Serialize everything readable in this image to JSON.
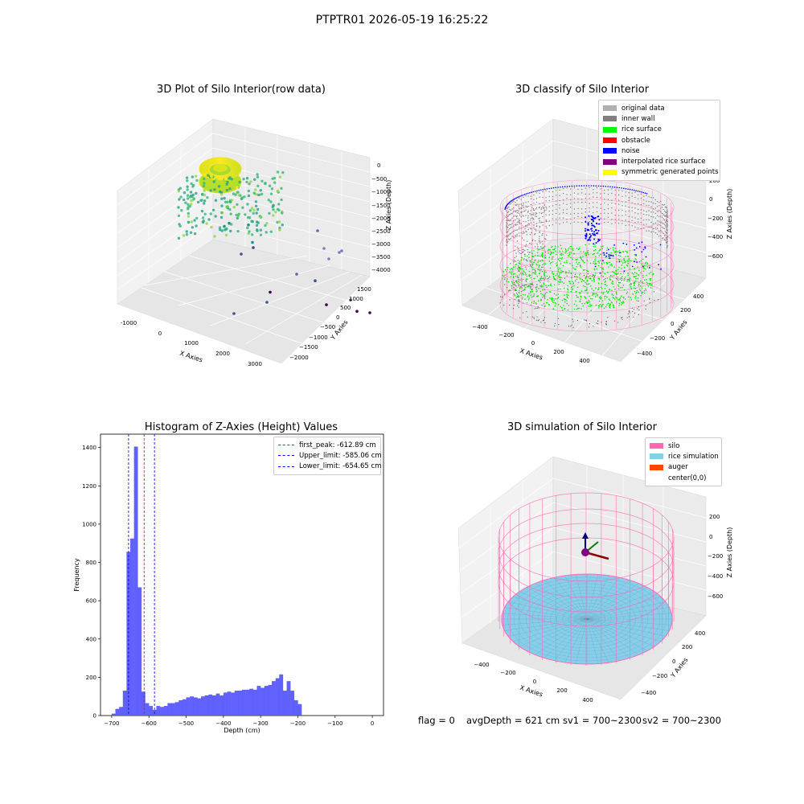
{
  "suptitle": "PTPTR01 2026-05-19 16:25:22",
  "footer": {
    "flag": "flag = 0",
    "avg_depth": "avgDepth = 621 cm",
    "sv1": "sv1 = 700~2300",
    "sv2": "sv2 = 700~2300"
  },
  "colors": {
    "silo": "#ff69b4",
    "rice_sim": "#87ceeb",
    "auger": "#ff4500",
    "hist_bar": "#5050ff",
    "peak_line": "#ff0000",
    "limit_line": "#0000ff",
    "inner_wall": "#808080",
    "rice_surface": "#00ff00",
    "noise": "#0000ff"
  },
  "chart_data": [
    {
      "type": "scatter",
      "title": "3D Plot of Silo Interior(row data)",
      "xlabel": "X Axies",
      "ylabel": "Y Axies",
      "zlabel": "Z Axies (Depth)",
      "x_ticks": [
        "-1000",
        "0",
        "1000",
        "2000",
        "3000"
      ],
      "y_ticks": [
        "1500",
        "1000",
        "500",
        "0",
        "−500",
        "−1000",
        "−1500",
        "−2000"
      ],
      "z_ticks": [
        "0",
        "−500",
        "−1000",
        "−1500",
        "−2000",
        "−2500",
        "−3000",
        "−3500",
        "−4000"
      ],
      "colormap": "viridis",
      "points": [
        {
          "x": -300,
          "y": 500,
          "z": -300
        },
        {
          "x": -200,
          "y": 400,
          "z": -250
        },
        {
          "x": -100,
          "y": 300,
          "z": -200
        },
        {
          "x": 0,
          "y": 200,
          "z": -150
        },
        {
          "x": 100,
          "y": 0,
          "z": -300
        },
        {
          "x": -500,
          "y": -100,
          "z": -1500
        },
        {
          "x": -400,
          "y": -200,
          "z": -1800
        },
        {
          "x": -300,
          "y": 0,
          "z": -2000
        },
        {
          "x": 300,
          "y": 400,
          "z": -1200
        },
        {
          "x": 500,
          "y": 300,
          "z": -1400
        },
        {
          "x": 700,
          "y": 200,
          "z": -1600
        },
        {
          "x": 200,
          "y": -300,
          "z": -2200
        },
        {
          "x": 1000,
          "y": -1500,
          "z": -3500
        },
        {
          "x": 1700,
          "y": -1700,
          "z": -3300
        },
        {
          "x": 2900,
          "y": 300,
          "z": -2800
        },
        {
          "x": 3000,
          "y": -500,
          "z": -3000
        },
        {
          "x": 3100,
          "y": -900,
          "z": -3200
        },
        {
          "x": 1500,
          "y": 300,
          "z": -3900
        }
      ]
    },
    {
      "type": "scatter",
      "title": "3D classify of Silo Interior",
      "xlabel": "X Axies",
      "ylabel": "Y Axies",
      "zlabel": "Z Axies (Depth)",
      "x_ticks": [
        "−400",
        "−200",
        "0",
        "200",
        "400"
      ],
      "y_ticks": [
        "400",
        "200",
        "0",
        "−200",
        "−400"
      ],
      "z_ticks": [
        "200",
        "0",
        "−200",
        "−400",
        "−600"
      ],
      "legend": [
        {
          "label": "original data",
          "color": "#b0b0b0"
        },
        {
          "label": "inner wall",
          "color": "#808080"
        },
        {
          "label": "rice surface",
          "color": "#00ff00"
        },
        {
          "label": "obstacle",
          "color": "#ff0000"
        },
        {
          "label": "noise",
          "color": "#0000ff"
        },
        {
          "label": "interpolated rice surface",
          "color": "#800080"
        },
        {
          "label": "symmetric generated points",
          "color": "#ffff00"
        }
      ]
    },
    {
      "type": "bar",
      "title": "Histogram of Z-Axies (Height) Values",
      "xlabel": "Depth (cm)",
      "ylabel": "Frequency",
      "xlim": [
        -730,
        30
      ],
      "ylim": [
        0,
        1470
      ],
      "x_ticks": [
        -700,
        -600,
        -500,
        -400,
        -300,
        -200,
        -100,
        0
      ],
      "y_ticks": [
        0,
        200,
        400,
        600,
        800,
        1000,
        1200,
        1400
      ],
      "bin_width": 10,
      "bin_start": -700,
      "values": [
        10,
        35,
        45,
        130,
        855,
        925,
        1405,
        670,
        125,
        65,
        50,
        30,
        50,
        45,
        50,
        65,
        65,
        70,
        80,
        85,
        95,
        100,
        95,
        90,
        100,
        105,
        110,
        105,
        115,
        105,
        120,
        125,
        120,
        130,
        130,
        135,
        135,
        140,
        135,
        155,
        145,
        155,
        160,
        180,
        195,
        215,
        130,
        180,
        130,
        80,
        60
      ],
      "vlines": [
        {
          "label": "first_peak: -612.89 cm",
          "x": -612.89,
          "color": "#ff0000"
        },
        {
          "label": "Upper_limit: -585.06 cm",
          "x": -585.06,
          "color": "#0000ff"
        },
        {
          "label": "Lower_limit: -654.65 cm",
          "x": -654.65,
          "color": "#0000ff"
        }
      ]
    },
    {
      "type": "scatter",
      "title": "3D simulation of Silo Interior",
      "xlabel": "X Axies",
      "ylabel": "Y Axies",
      "zlabel": "Z Axies (Depth)",
      "x_ticks": [
        "−400",
        "−200",
        "0",
        "200",
        "400"
      ],
      "y_ticks": [
        "400",
        "200",
        "0",
        "−200",
        "−400"
      ],
      "z_ticks": [
        "200",
        "0",
        "−200",
        "−400",
        "−600"
      ],
      "legend": [
        {
          "label": "silo",
          "color": "#ff69b4"
        },
        {
          "label": "rice simulation",
          "color": "#87ceeb"
        },
        {
          "label": "auger",
          "color": "#ff4500"
        },
        {
          "label": "center(0,0)",
          "color": "#ffffff"
        }
      ]
    }
  ]
}
